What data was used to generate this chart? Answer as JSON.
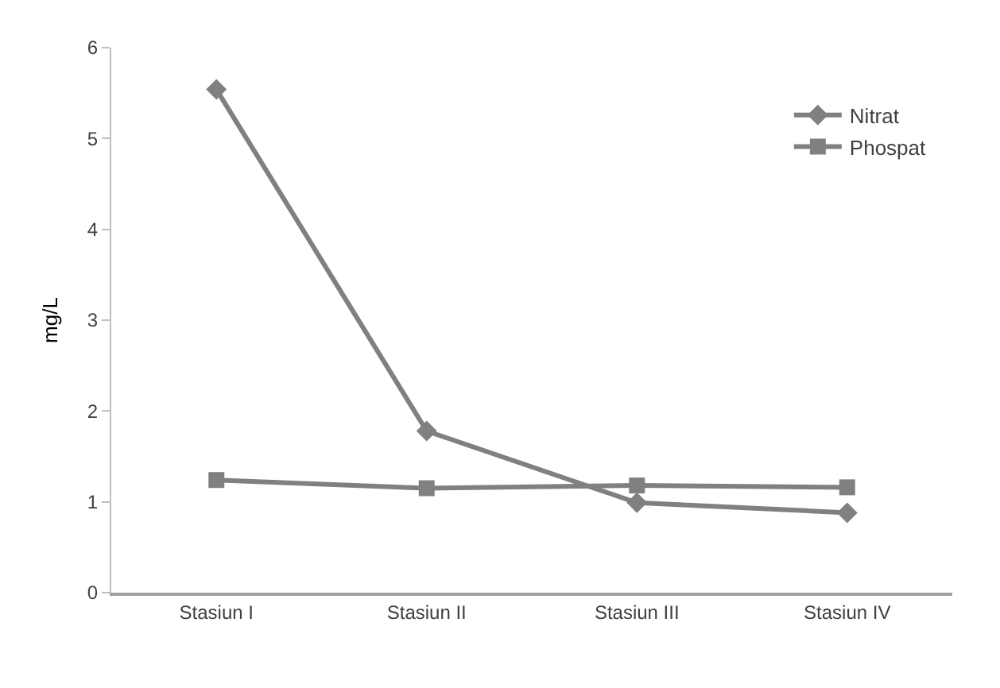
{
  "chart_data": {
    "type": "line",
    "ylabel": "mg/L",
    "categories": [
      "Stasiun I",
      "Stasiun II",
      "Stasiun III",
      "Stasiun IV"
    ],
    "series": [
      {
        "name": "Nitrat",
        "color": "#808080",
        "marker": "diamond",
        "values": [
          5.54,
          1.78,
          0.99,
          0.88
        ]
      },
      {
        "name": "Phospat",
        "color": "#808080",
        "marker": "square",
        "values": [
          1.24,
          1.15,
          1.18,
          1.16
        ]
      }
    ],
    "ylim": [
      0,
      6
    ],
    "yticks": [
      0,
      1,
      2,
      3,
      4,
      5,
      6
    ],
    "grid": false,
    "legend": "top right"
  }
}
